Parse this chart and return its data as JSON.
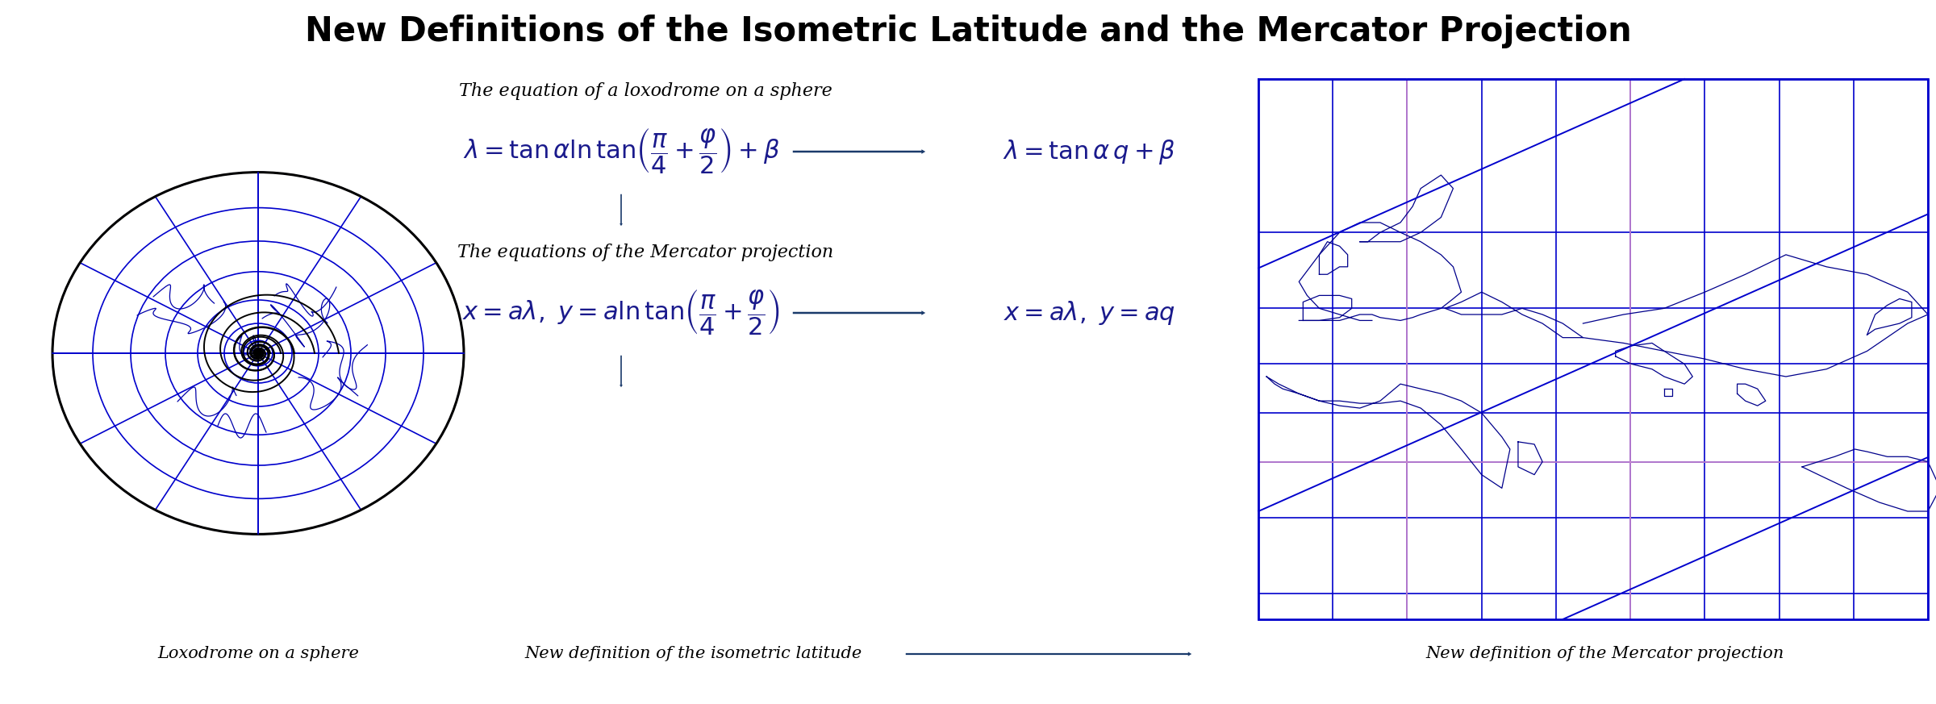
{
  "title": "New Definitions of the Isometric Latitude and the Mercator Projection",
  "title_fontsize": 30,
  "title_fontweight": "bold",
  "bg_color": "#ffffff",
  "text_color": "#000000",
  "math_color": "#1a1a8c",
  "arrow_color": "#1a3a6b",
  "blue": "#0000cc",
  "black": "#000000",
  "coastline_color": "#00008b",
  "pink": "#cc88cc",
  "label1": "The equation of a loxodrome on a sphere",
  "eq1": "$\\lambda = \\tan\\alpha\\ln\\tan\\!\\left(\\dfrac{\\pi}{4}+\\dfrac{\\varphi}{2}\\right)+\\beta$",
  "eq1_simple": "$\\lambda = \\tan\\alpha\\, q + \\beta$",
  "label2": "The equations of the Mercator projection",
  "eq2": "$x = a\\lambda,\\ y = a\\ln\\tan\\!\\left(\\dfrac{\\pi}{4}+\\dfrac{\\varphi}{2}\\right)$",
  "eq2_simple": "$x = a\\lambda,\\ y = aq$",
  "caption_left": "Loxodrome on a sphere",
  "caption_center": "New definition of the isometric latitude",
  "caption_right": "New definition of the Mercator projection",
  "label_fontsize": 16,
  "eq_fontsize": 22,
  "caption_fontsize": 15
}
